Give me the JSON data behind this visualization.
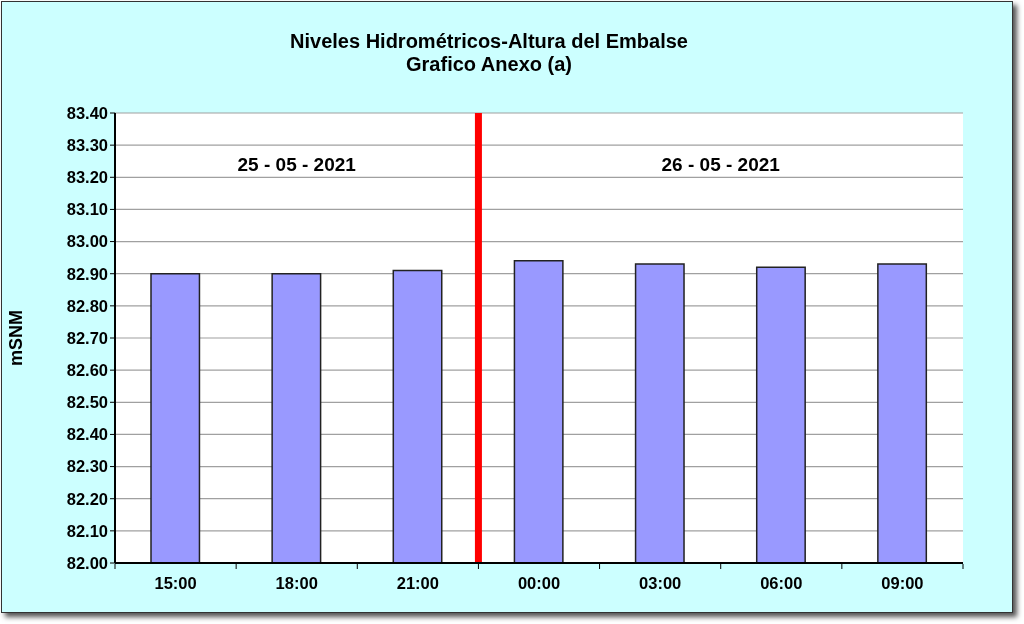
{
  "chart_data": {
    "type": "bar",
    "title": "Niveles Hidrométricos-Altura del Embalse",
    "subtitle": "Grafico Anexo (a)",
    "ylabel": "mSNM",
    "x": [
      "2021-05-25T15:00",
      "2021-05-25T18:00",
      "2021-05-25T21:00",
      "2021-05-26T00:00",
      "2021-05-26T03:00",
      "2021-05-26T06:00",
      "2021-05-26T09:00"
    ],
    "values": [
      82.9,
      82.9,
      82.91,
      82.94,
      82.93,
      82.92,
      82.93
    ],
    "color": "#9999ff",
    "xlim": [
      "2021-05-25T13:30",
      "2021-05-26T10:30"
    ],
    "xticks": [
      {
        "value": "2021-05-25T13:30",
        "label": null
      },
      {
        "value": "2021-05-25T15:00",
        "label": "15:00"
      },
      {
        "value": "2021-05-25T16:30",
        "label": null
      },
      {
        "value": "2021-05-25T18:00",
        "label": "18:00"
      },
      {
        "value": "2021-05-25T19:30",
        "label": null
      },
      {
        "value": "2021-05-25T21:00",
        "label": "21:00"
      },
      {
        "value": "2021-05-25T22:30",
        "label": null
      },
      {
        "value": "2021-05-26T00:00",
        "label": "00:00"
      },
      {
        "value": "2021-05-26T01:30",
        "label": null
      },
      {
        "value": "2021-05-26T03:00",
        "label": "03:00"
      },
      {
        "value": "2021-05-26T04:30",
        "label": null
      },
      {
        "value": "2021-05-26T06:00",
        "label": "06:00"
      },
      {
        "value": "2021-05-26T07:30",
        "label": null
      },
      {
        "value": "2021-05-26T09:00",
        "label": "09:00"
      },
      {
        "value": "2021-05-26T10:30",
        "label": null
      }
    ],
    "ylim": [
      82,
      83.4
    ],
    "yticks": [
      {
        "value": 82,
        "label": "82.00"
      },
      {
        "value": 82.1,
        "label": "82.10"
      },
      {
        "value": 82.2,
        "label": "82.20"
      },
      {
        "value": 82.3,
        "label": "82.30"
      },
      {
        "value": 82.4,
        "label": "82.40"
      },
      {
        "value": 82.5,
        "label": "82.50"
      },
      {
        "value": 82.6,
        "label": "82.60"
      },
      {
        "value": 82.7,
        "label": "82.70"
      },
      {
        "value": 82.8,
        "label": "82.80"
      },
      {
        "value": 82.9,
        "label": "82.90"
      },
      {
        "value": 83,
        "label": "83.00"
      },
      {
        "value": 83.1,
        "label": "83.10"
      },
      {
        "value": 83.2,
        "label": "83.20"
      },
      {
        "value": 83.3,
        "label": "83.30"
      },
      {
        "value": 83.4,
        "label": "83.40"
      }
    ],
    "grid": "y",
    "ref_lines": [
      {
        "axis": "x",
        "value": "2021-05-25T22:30",
        "color": "#ff0000"
      }
    ],
    "annotations": [
      "25 - 05 - 2021",
      "26 - 05 - 2021"
    ]
  }
}
